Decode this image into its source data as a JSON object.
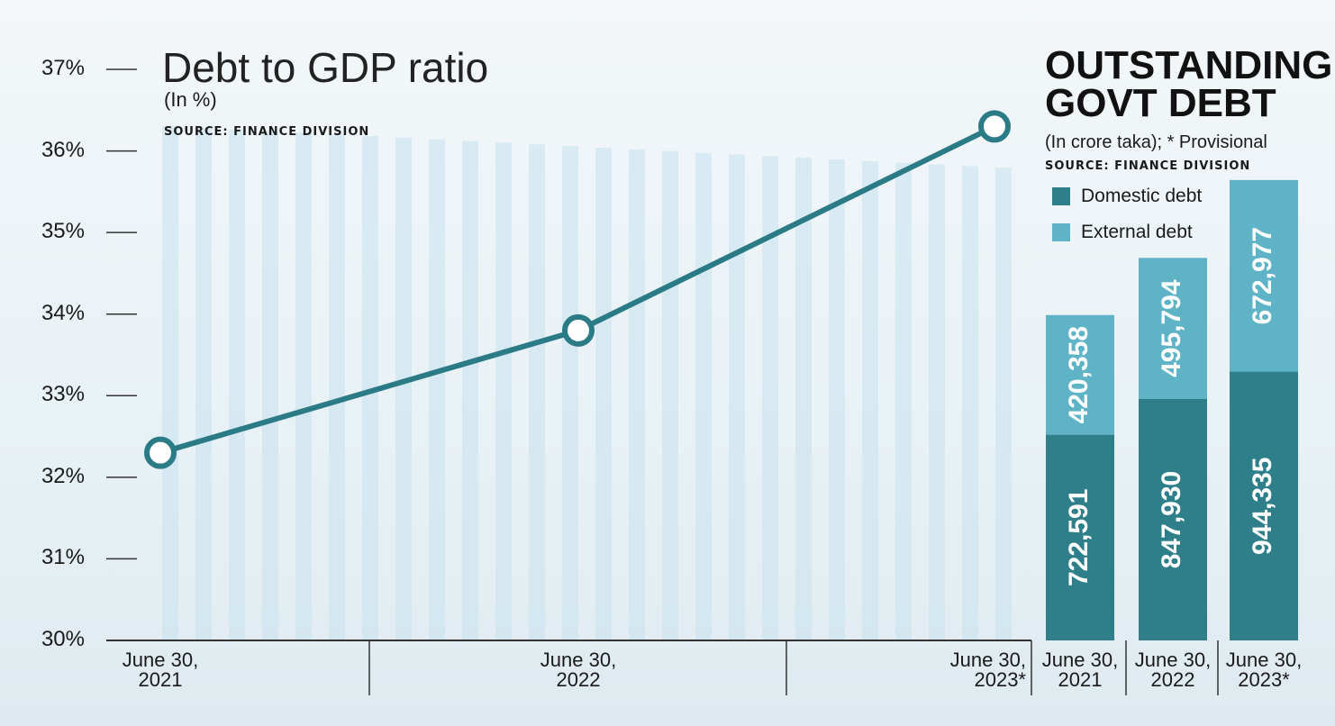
{
  "chart_data": [
    {
      "type": "line",
      "title": "Debt to GDP ratio",
      "subtitle": "(In %)",
      "source": "SOURCE: FINANCE DIVISION",
      "categories": [
        "June 30,\n2021",
        "June 30,\n2022",
        "June 30,\n2023*"
      ],
      "values": [
        32.3,
        33.8,
        36.3
      ],
      "color": "#2a7b86",
      "ylim": [
        30,
        37
      ],
      "yticks": [
        {
          "value": 30,
          "label": "30%"
        },
        {
          "value": 31,
          "label": "31%"
        },
        {
          "value": 32,
          "label": "32%"
        },
        {
          "value": 33,
          "label": "33%"
        },
        {
          "value": 34,
          "label": "34%"
        },
        {
          "value": 35,
          "label": "35%"
        },
        {
          "value": 36,
          "label": "36%"
        },
        {
          "value": 37,
          "label": "37%"
        }
      ]
    },
    {
      "type": "stacked_bar",
      "title": "OUTSTANDING\nGOVT DEBT",
      "subtitle": "(In crore taka); * Provisional",
      "source": "SOURCE: FINANCE DIVISION",
      "categories": [
        "June 30,\n2021",
        "June 30,\n2022",
        "June 30,\n2023*"
      ],
      "series": [
        {
          "name": "Domestic debt",
          "color": "#2e7f8a",
          "values": [
            722591,
            847930,
            944335
          ],
          "value_labels": [
            "722,591",
            "847,930",
            "944,335"
          ]
        },
        {
          "name": "External debt",
          "color": "#5fb3c6",
          "values": [
            420358,
            495794,
            672977
          ],
          "value_labels": [
            "420,358",
            "495,794",
            "672,977"
          ]
        }
      ]
    }
  ]
}
